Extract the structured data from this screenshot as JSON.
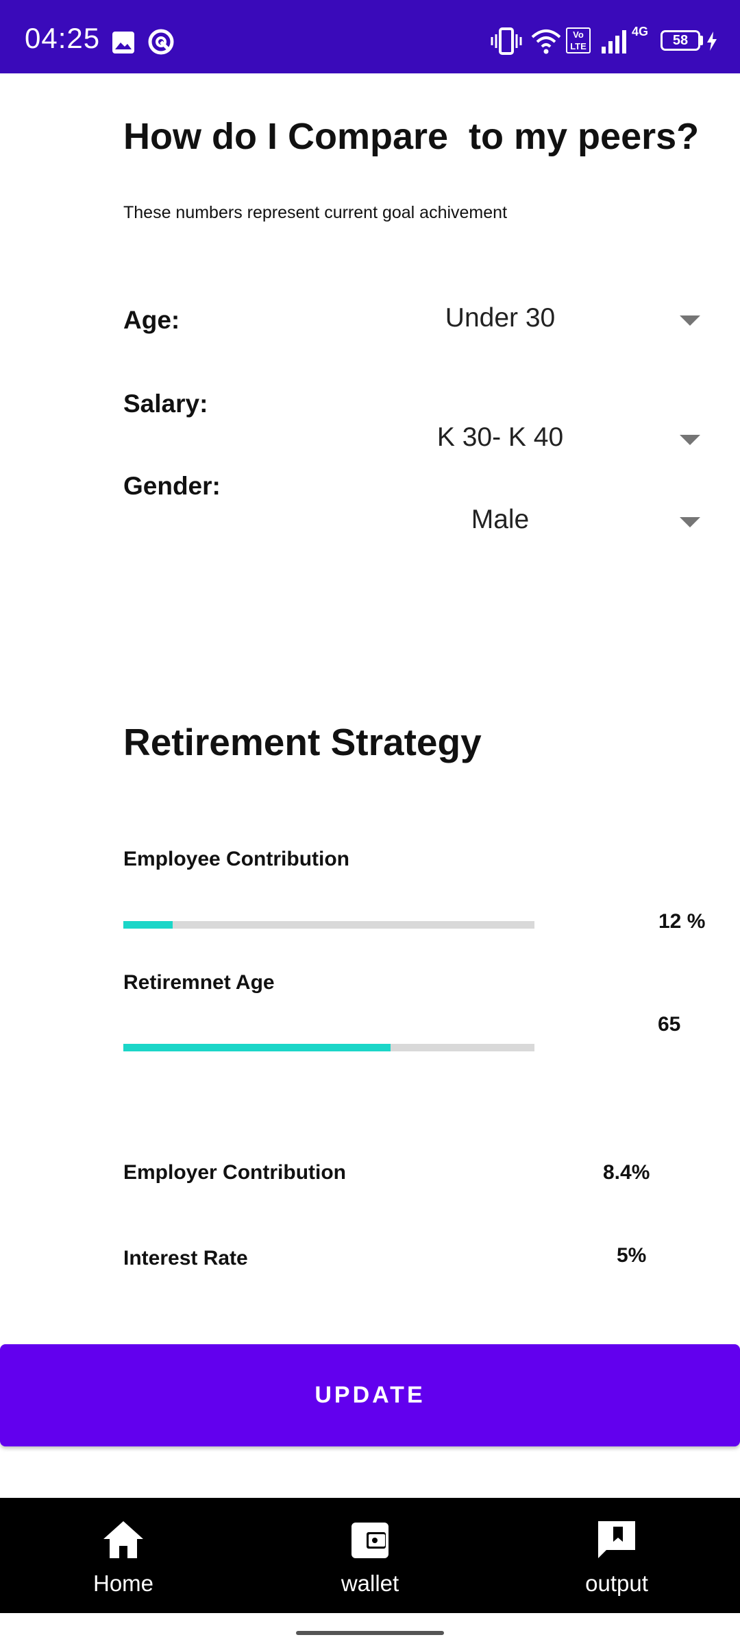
{
  "status_bar": {
    "time": "04:25",
    "battery": "58",
    "network": "4G",
    "volte": "Vo LTE",
    "icons": [
      "image-icon",
      "sync-icon",
      "vibrate-icon",
      "wifi-icon",
      "volte-icon",
      "signal-icon",
      "battery-icon",
      "charging-icon"
    ]
  },
  "header": {
    "title": "How do I Compare  to my peers?",
    "subtitle": "These numbers represent current goal achivement"
  },
  "filters": {
    "age": {
      "label": "Age:",
      "value": "Under 30"
    },
    "salary": {
      "label": "Salary:",
      "value": "K 30- K 40"
    },
    "gender": {
      "label": "Gender:",
      "value": "Male"
    }
  },
  "strategy": {
    "title": "Retirement Strategy",
    "employee_contribution": {
      "label": "Employee Contribution",
      "value": "12 %",
      "progress_fraction": 0.12
    },
    "retirement_age": {
      "label": "Retiremnet Age",
      "value": "65",
      "progress_fraction": 0.65
    },
    "employer_contribution": {
      "label": "Employer Contribution",
      "value": "8.4%"
    },
    "interest_rate": {
      "label": "Interest Rate",
      "value": "5%"
    }
  },
  "actions": {
    "update_label": "UPDATE"
  },
  "bottom_nav": {
    "items": [
      {
        "label": "Home",
        "icon": "home-icon"
      },
      {
        "label": "wallet",
        "icon": "wallet-icon"
      },
      {
        "label": "output",
        "icon": "feedback-icon"
      }
    ]
  },
  "colors": {
    "status_bar": "#3a0aba",
    "accent": "#6200ee",
    "slider_fill": "#1bd6c8",
    "slider_track": "#d9d9d9",
    "bottom_nav": "#000000"
  }
}
